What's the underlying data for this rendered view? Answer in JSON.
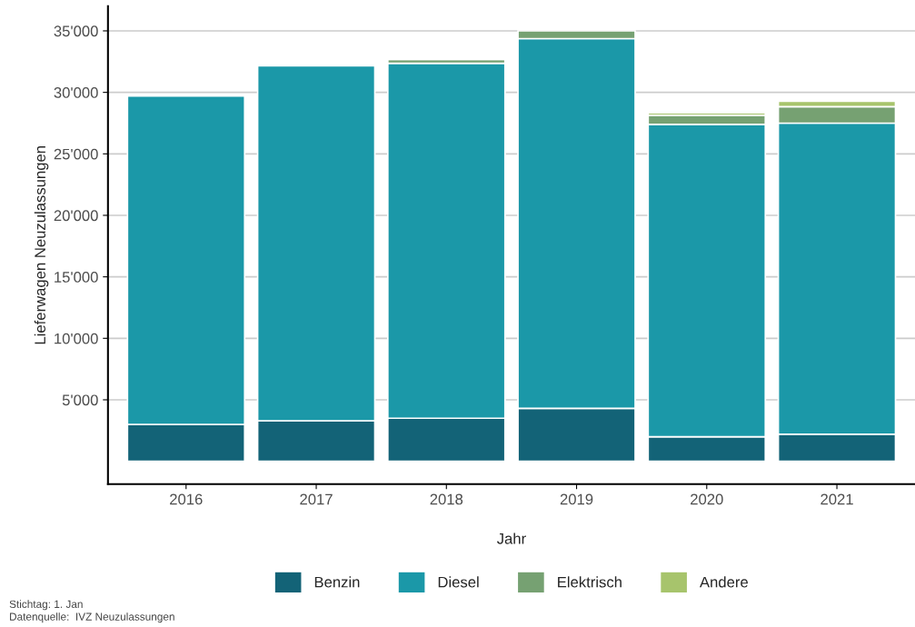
{
  "chart_data": {
    "type": "bar",
    "stacked": true,
    "xlabel": "Jahr",
    "ylabel": "Lieferwagen Neuzulassungen",
    "categories": [
      "2016",
      "2017",
      "2018",
      "2019",
      "2020",
      "2021"
    ],
    "series": [
      {
        "name": "Benzin",
        "color": "#136377",
        "values": [
          3000,
          3300,
          3500,
          4300,
          2000,
          2200
        ]
      },
      {
        "name": "Diesel",
        "color": "#1b98a8",
        "values": [
          26700,
          28850,
          28870,
          30070,
          25400,
          25300
        ]
      },
      {
        "name": "Elektrisch",
        "color": "#76a172",
        "values": [
          null,
          null,
          300,
          630,
          740,
          1340
        ]
      },
      {
        "name": "Andere",
        "color": "#a7c46c",
        "values": [
          null,
          null,
          100,
          null,
          200,
          440
        ]
      }
    ],
    "ylim": [
      -1850,
      37000
    ],
    "yticks": [
      {
        "value": 5000,
        "label": "5'000"
      },
      {
        "value": 10000,
        "label": "10'000"
      },
      {
        "value": 15000,
        "label": "15'000"
      },
      {
        "value": 20000,
        "label": "20'000"
      },
      {
        "value": 25000,
        "label": "25'000"
      },
      {
        "value": 30000,
        "label": "30'000"
      },
      {
        "value": 35000,
        "label": "35'000"
      }
    ],
    "grid": "y",
    "legend": "bottom",
    "annotations": [
      "Stichtag: 1. Jan",
      "Datenquelle:  IVZ Neuzulassungen"
    ]
  }
}
